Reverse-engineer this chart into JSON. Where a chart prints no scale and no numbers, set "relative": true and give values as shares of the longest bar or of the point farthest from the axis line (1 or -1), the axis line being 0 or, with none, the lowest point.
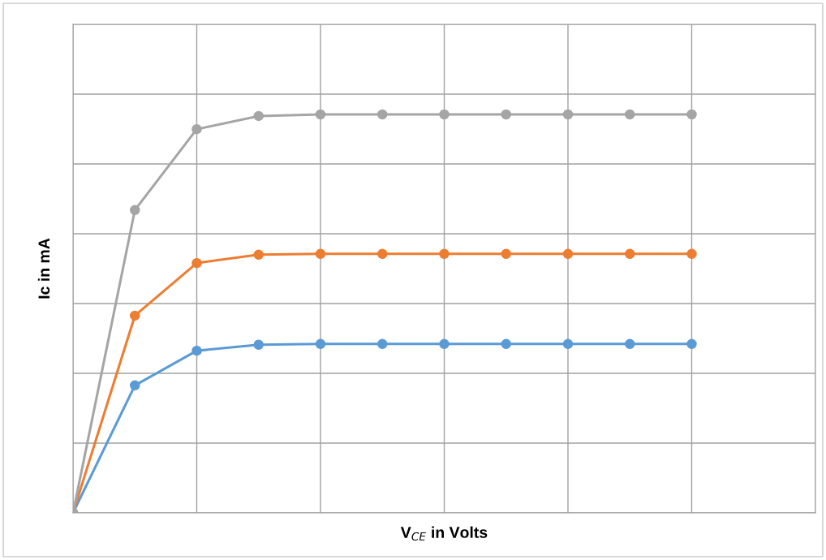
{
  "chart_data": {
    "type": "line",
    "xlabel": "V$_{CE}$ in Volts",
    "ylabel": "Ic in mA",
    "relative": true,
    "grid": true,
    "marker": "circle",
    "line_style": "solid",
    "legend": false,
    "categories": [
      null,
      null,
      null,
      null,
      null,
      null,
      null,
      null,
      null,
      null,
      null
    ],
    "series": [
      {
        "color": "#5b9bd5",
        "values": [
          0,
          0.32,
          0.407,
          0.422,
          0.424,
          0.424,
          0.424,
          0.424,
          0.424,
          0.424,
          0.424
        ]
      },
      {
        "color": "#ed7d31",
        "values": [
          0,
          0.495,
          0.627,
          0.648,
          0.65,
          0.65,
          0.65,
          0.65,
          0.65,
          0.65,
          0.65
        ]
      },
      {
        "color": "#a5a5a5",
        "values": [
          0,
          0.76,
          0.963,
          0.996,
          1,
          1,
          1,
          1,
          1,
          1,
          1
        ]
      }
    ]
  }
}
